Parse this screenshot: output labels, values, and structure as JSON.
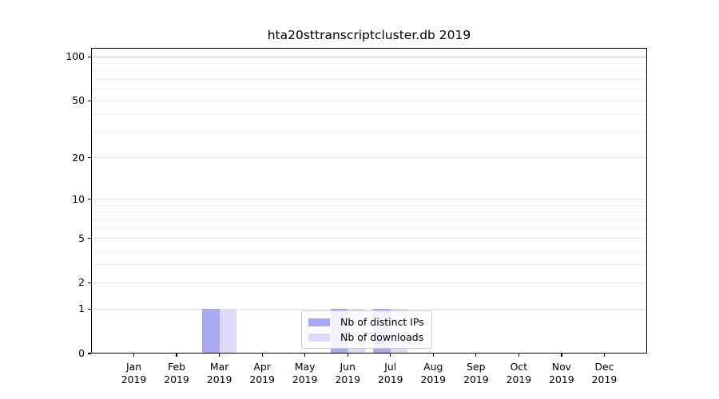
{
  "chart_data": {
    "type": "bar",
    "title": "hta20sttranscriptcluster.db 2019",
    "categories": [
      "Jan",
      "Feb",
      "Mar",
      "Apr",
      "May",
      "Jun",
      "Jul",
      "Aug",
      "Sep",
      "Oct",
      "Nov",
      "Dec"
    ],
    "category_year": "2019",
    "series": [
      {
        "name": "Nb of distinct IPs",
        "color": "#a9a9f2",
        "values": [
          0,
          0,
          1,
          0,
          0,
          1,
          1,
          0,
          0,
          0,
          0,
          0
        ]
      },
      {
        "name": "Nb of downloads",
        "color": "#dbdbf8",
        "values": [
          0,
          0,
          1,
          0,
          0,
          1,
          1,
          0,
          0,
          0,
          0,
          0
        ]
      }
    ],
    "xlabel": "",
    "ylabel": "",
    "y_scale": "log1p",
    "ylim": [
      0,
      115
    ],
    "y_ticks": [
      0,
      1,
      2,
      5,
      10,
      20,
      50,
      100
    ],
    "y_grid_major": [
      1,
      2,
      5,
      10,
      20,
      50
    ],
    "y_grid_minor": [
      3,
      4,
      6,
      7,
      8,
      9,
      30,
      40,
      60,
      70,
      80,
      90
    ],
    "y_grid_top": 100,
    "grid": true,
    "legend_position": "lower center"
  },
  "colors": {
    "axis": "#000000",
    "text": "#000000",
    "grid_major": "#e2e2e2",
    "grid_minor": "#f1f1f1",
    "grid_top_line": "#c4c4c4",
    "legend_border": "#cccccc",
    "legend_bg": "rgba(255,255,255,0.85)"
  }
}
